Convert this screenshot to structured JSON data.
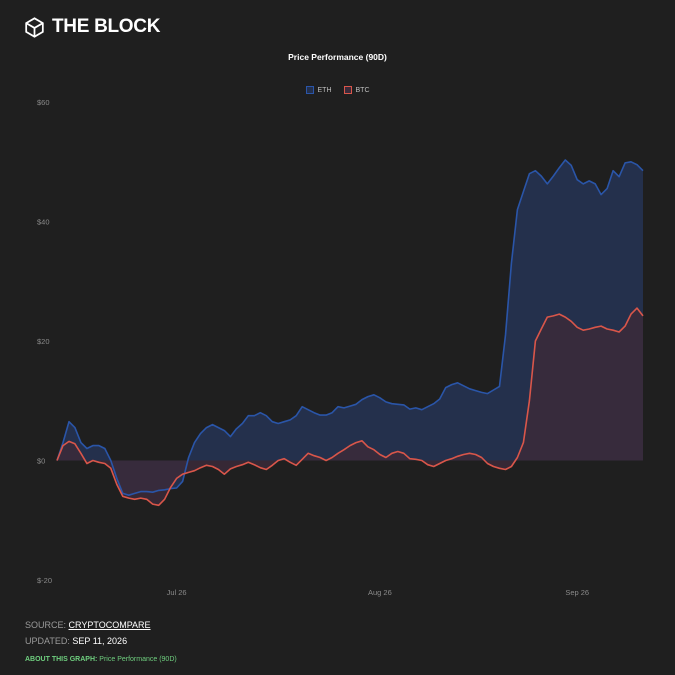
{
  "brand": {
    "name": "THE BLOCK",
    "logo_icon": "block-cube-icon"
  },
  "chart_data": {
    "type": "area",
    "title": "Price Performance (90D)",
    "legend_position": "top-center",
    "grid": false,
    "y_ticks": [
      {
        "value": 60,
        "label": "$60"
      },
      {
        "value": 40,
        "label": "$40"
      },
      {
        "value": 20,
        "label": "$20"
      },
      {
        "value": 0,
        "label": "$0"
      },
      {
        "value": -20,
        "label": "$-20"
      }
    ],
    "ylim": [
      -20,
      60
    ],
    "x_ticks": [
      {
        "index": 20,
        "label": "Jul 26"
      },
      {
        "index": 54,
        "label": "Aug 26"
      },
      {
        "index": 87,
        "label": "Sep 26"
      }
    ],
    "xlim": [
      0,
      98
    ],
    "series": [
      {
        "name": "ETH",
        "color": "#2a55a8",
        "fill": "#24304c",
        "values": [
          0,
          3,
          6.5,
          5.5,
          3,
          2,
          2.5,
          2.5,
          2,
          0,
          -3,
          -5.5,
          -5.8,
          -5.5,
          -5.2,
          -5.2,
          -5.3,
          -5,
          -4.9,
          -4.7,
          -4.6,
          -3.5,
          0.5,
          3,
          4.5,
          5.5,
          6,
          5.5,
          5,
          4,
          5.3,
          6.2,
          7.5,
          7.5,
          8,
          7.5,
          6.5,
          6.2,
          6.5,
          6.8,
          7.5,
          9,
          8.5,
          8,
          7.6,
          7.6,
          8,
          9,
          8.8,
          9.1,
          9.4,
          10.2,
          10.7,
          11,
          10.5,
          9.8,
          9.5,
          9.4,
          9.3,
          8.6,
          8.8,
          8.5,
          9,
          9.5,
          10.3,
          12.2,
          12.7,
          13,
          12.5,
          12,
          11.7,
          11.4,
          11.2,
          11.8,
          12.4,
          21,
          33,
          42,
          45,
          48,
          48.5,
          47.6,
          46.3,
          47.6,
          49,
          50.3,
          49.4,
          47,
          46.3,
          46.8,
          46.3,
          44.5,
          45.5,
          48.5,
          47.5,
          49.8,
          50,
          49.5,
          48.5
        ],
        "description_note": ""
      },
      {
        "name": "BTC",
        "color": "#d9564a",
        "fill": "#3b2a3a",
        "values": [
          0,
          2.5,
          3.2,
          2.8,
          1.2,
          -0.5,
          0,
          -0.3,
          -0.5,
          -1.3,
          -4,
          -6,
          -6.3,
          -6.5,
          -6.3,
          -6.5,
          -7.3,
          -7.5,
          -6.5,
          -4.5,
          -3,
          -2.3,
          -2,
          -1.7,
          -1.2,
          -0.8,
          -1,
          -1.5,
          -2.3,
          -1.4,
          -1,
          -0.7,
          -0.3,
          -0.7,
          -1.2,
          -1.5,
          -0.8,
          0,
          0.3,
          -0.3,
          -0.8,
          0.2,
          1.2,
          0.8,
          0.5,
          0,
          0.5,
          1.2,
          1.8,
          2.5,
          3,
          3.3,
          2.3,
          1.8,
          1,
          0.5,
          1.2,
          1.5,
          1.2,
          0.3,
          0.2,
          0,
          -0.7,
          -1,
          -0.5,
          0,
          0.3,
          0.7,
          1,
          1.2,
          1,
          0.5,
          -0.5,
          -1,
          -1.3,
          -1.5,
          -1,
          0.5,
          3,
          10,
          20,
          22,
          24,
          24.2,
          24.5,
          24,
          23.3,
          22.3,
          21.8,
          22,
          22.3,
          22.5,
          22,
          21.8,
          21.5,
          22.5,
          24.5,
          25.5,
          24.2
        ]
      }
    ]
  },
  "footer": {
    "source_label": "SOURCE:",
    "source_value": "CRYPTOCOMPARE",
    "updated_label": "UPDATED:",
    "updated_value": "SEP 11, 2026",
    "about_label": "ABOUT THIS GRAPH:",
    "about_value": "Price Performance (90D)"
  }
}
